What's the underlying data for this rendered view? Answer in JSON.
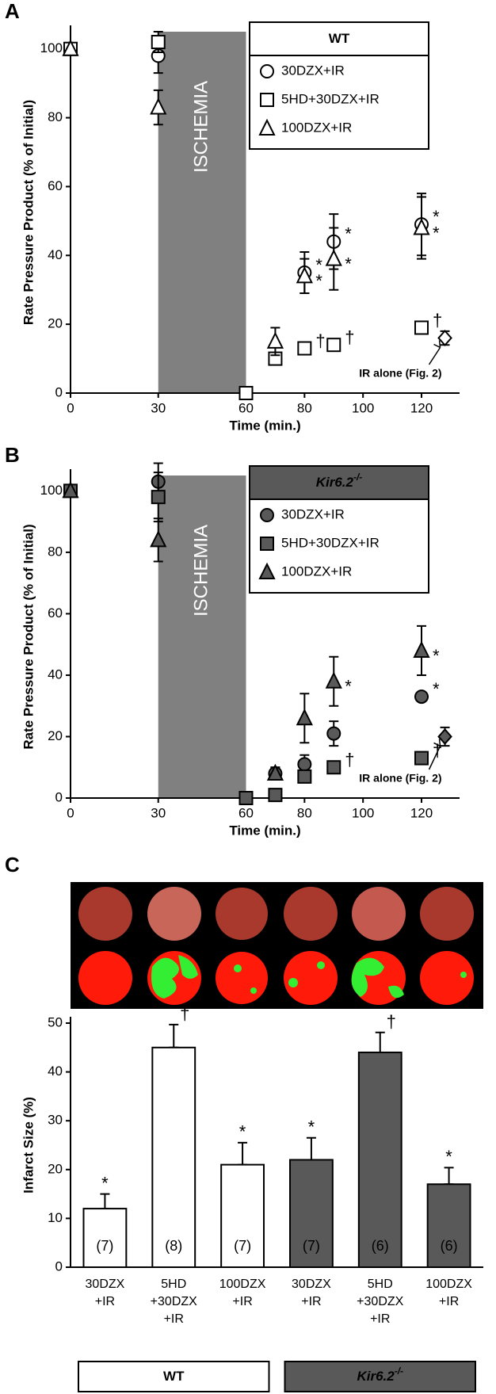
{
  "chart_data": [
    {
      "type": "scatter",
      "panel": "A",
      "x_label": "Time (min.)",
      "y_label": "Rate Pressure Product (% of Initial)",
      "legend_title": "WT",
      "legend_fill": "#ffffff",
      "marker_fill": "#ffffff",
      "xlim": [
        0,
        133
      ],
      "xticks": [
        0,
        30,
        60,
        80,
        100,
        120
      ],
      "ylim": [
        0,
        105
      ],
      "yticks": [
        0,
        20,
        40,
        60,
        80,
        100
      ],
      "ischemia": {
        "start": 30,
        "end": 60,
        "label": "ISCHEMIA"
      },
      "series": [
        {
          "name": "30DZX+IR",
          "marker": "circle",
          "x": [
            0,
            30,
            80,
            90,
            120
          ],
          "values": [
            100,
            98,
            35,
            44,
            49
          ],
          "errors": [
            0,
            5,
            6,
            8,
            9
          ],
          "symbols": [
            null,
            null,
            "*",
            "*",
            "*"
          ]
        },
        {
          "name": "5HD+30DZX+IR",
          "marker": "square",
          "x": [
            0,
            30,
            60,
            70,
            80,
            90,
            120
          ],
          "values": [
            100,
            102,
            0,
            10,
            13,
            14,
            19
          ],
          "errors": [
            0,
            3,
            0,
            1,
            1,
            1,
            1
          ],
          "symbols": [
            null,
            null,
            null,
            null,
            "†",
            "†",
            "†"
          ]
        },
        {
          "name": "100DZX+IR",
          "marker": "triangle",
          "x": [
            0,
            30,
            70,
            80,
            90,
            120
          ],
          "values": [
            100,
            83,
            15,
            34,
            39,
            48
          ],
          "errors": [
            0,
            5,
            4,
            5,
            9,
            9
          ],
          "symbols": [
            null,
            null,
            null,
            "*",
            "*",
            "*"
          ]
        }
      ],
      "reference": {
        "label": "IR alone (Fig. 2)",
        "marker": "diamond",
        "x": 128,
        "value": 16,
        "error": 2
      }
    },
    {
      "type": "scatter",
      "panel": "B",
      "x_label": "Time (min.)",
      "y_label": "Rate Pressure Product (% of Initial)",
      "legend_title": "Kir6.2",
      "legend_title_sup": "-/-",
      "legend_fill": "#595959",
      "marker_fill": "#595959",
      "xlim": [
        0,
        133
      ],
      "xticks": [
        0,
        30,
        60,
        80,
        100,
        120
      ],
      "ylim": [
        0,
        105
      ],
      "yticks": [
        0,
        20,
        40,
        60,
        80,
        100
      ],
      "ischemia": {
        "start": 30,
        "end": 60,
        "label": "ISCHEMIA"
      },
      "series": [
        {
          "name": "30DZX+IR",
          "marker": "circle",
          "x": [
            0,
            30,
            60,
            70,
            80,
            90,
            120
          ],
          "values": [
            100,
            103,
            0,
            8,
            11,
            21,
            33
          ],
          "errors": [
            0,
            6,
            0,
            2,
            3,
            4,
            1
          ],
          "symbols": [
            null,
            null,
            null,
            null,
            null,
            null,
            "*"
          ]
        },
        {
          "name": "5HD+30DZX+IR",
          "marker": "square",
          "x": [
            0,
            30,
            60,
            70,
            80,
            90,
            120
          ],
          "values": [
            100,
            98,
            0,
            1,
            7,
            10,
            13
          ],
          "errors": [
            0,
            8,
            0,
            1,
            1,
            1,
            2
          ],
          "symbols": [
            null,
            null,
            null,
            null,
            null,
            "†",
            "†"
          ]
        },
        {
          "name": "100DZX+IR",
          "marker": "triangle",
          "x": [
            0,
            30,
            70,
            80,
            90,
            120
          ],
          "values": [
            100,
            84,
            8,
            26,
            38,
            48
          ],
          "errors": [
            0,
            7,
            2,
            8,
            8,
            8
          ],
          "symbols": [
            null,
            null,
            null,
            null,
            "*",
            "*"
          ]
        }
      ],
      "reference": {
        "label": "IR alone (Fig. 2)",
        "marker": "diamond",
        "x": 128,
        "value": 20,
        "error": 3
      }
    },
    {
      "type": "bar",
      "panel": "C",
      "y_label": "Infarct Size (%)",
      "ylim": [
        0,
        50
      ],
      "yticks": [
        0,
        10,
        20,
        30,
        40,
        50
      ],
      "categories": [
        [
          "30DZX",
          "+IR"
        ],
        [
          "5HD",
          "+30DZX",
          "+IR"
        ],
        [
          "100DZX",
          "+IR"
        ],
        [
          "30DZX",
          "+IR"
        ],
        [
          "5HD",
          "+30DZX",
          "+IR"
        ],
        [
          "100DZX",
          "+IR"
        ]
      ],
      "values": [
        12,
        45,
        21,
        22,
        44,
        17
      ],
      "errors": [
        3,
        4.7,
        4.5,
        4.5,
        4.1,
        3.4
      ],
      "n_labels": [
        "(7)",
        "(8)",
        "(7)",
        "(7)",
        "(6)",
        "(6)"
      ],
      "symbols": [
        "*",
        "†",
        "*",
        "*",
        "†",
        "*"
      ],
      "groups": [
        {
          "name": "WT",
          "size": 3,
          "color": "#ffffff"
        },
        {
          "name": "Kir6.2",
          "sup": "-/-",
          "size": 3,
          "color": "#595959"
        }
      ]
    }
  ]
}
